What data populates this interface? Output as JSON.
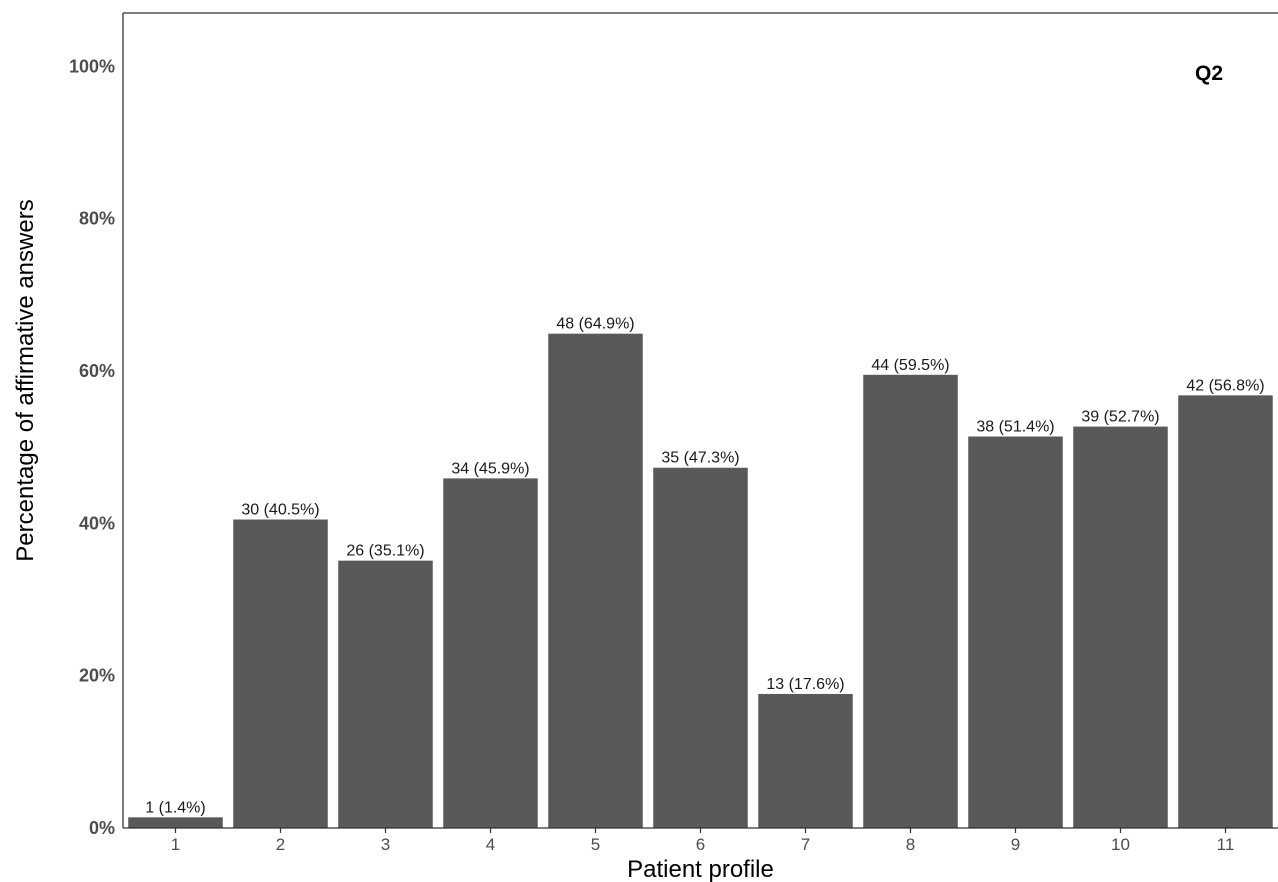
{
  "chart_data": {
    "type": "bar",
    "title": "",
    "panel_label": "Q2",
    "xlabel": "Patient profile",
    "ylabel": "Percentage of affirmative answers",
    "categories": [
      "1",
      "2",
      "3",
      "4",
      "5",
      "6",
      "7",
      "8",
      "9",
      "10",
      "11"
    ],
    "values": [
      1.4,
      40.5,
      35.1,
      45.9,
      64.9,
      47.3,
      17.6,
      59.5,
      51.4,
      52.7,
      56.8
    ],
    "counts": [
      1,
      30,
      26,
      34,
      48,
      35,
      13,
      44,
      38,
      39,
      42
    ],
    "data_labels": [
      "1 (1.4%)",
      "30 (40.5%)",
      "26 (35.1%)",
      "34 (45.9%)",
      "48 (64.9%)",
      "35 (47.3%)",
      "13 (17.6%)",
      "44 (59.5%)",
      "38 (51.4%)",
      "39 (52.7%)",
      "42 (56.8%)"
    ],
    "yticks": [
      0,
      20,
      40,
      60,
      80,
      100
    ],
    "ytick_labels": [
      "0%",
      "20%",
      "40%",
      "60%",
      "80%",
      "100%"
    ],
    "ylim": [
      0,
      107
    ],
    "grid": false,
    "bar_color": "#595959"
  }
}
